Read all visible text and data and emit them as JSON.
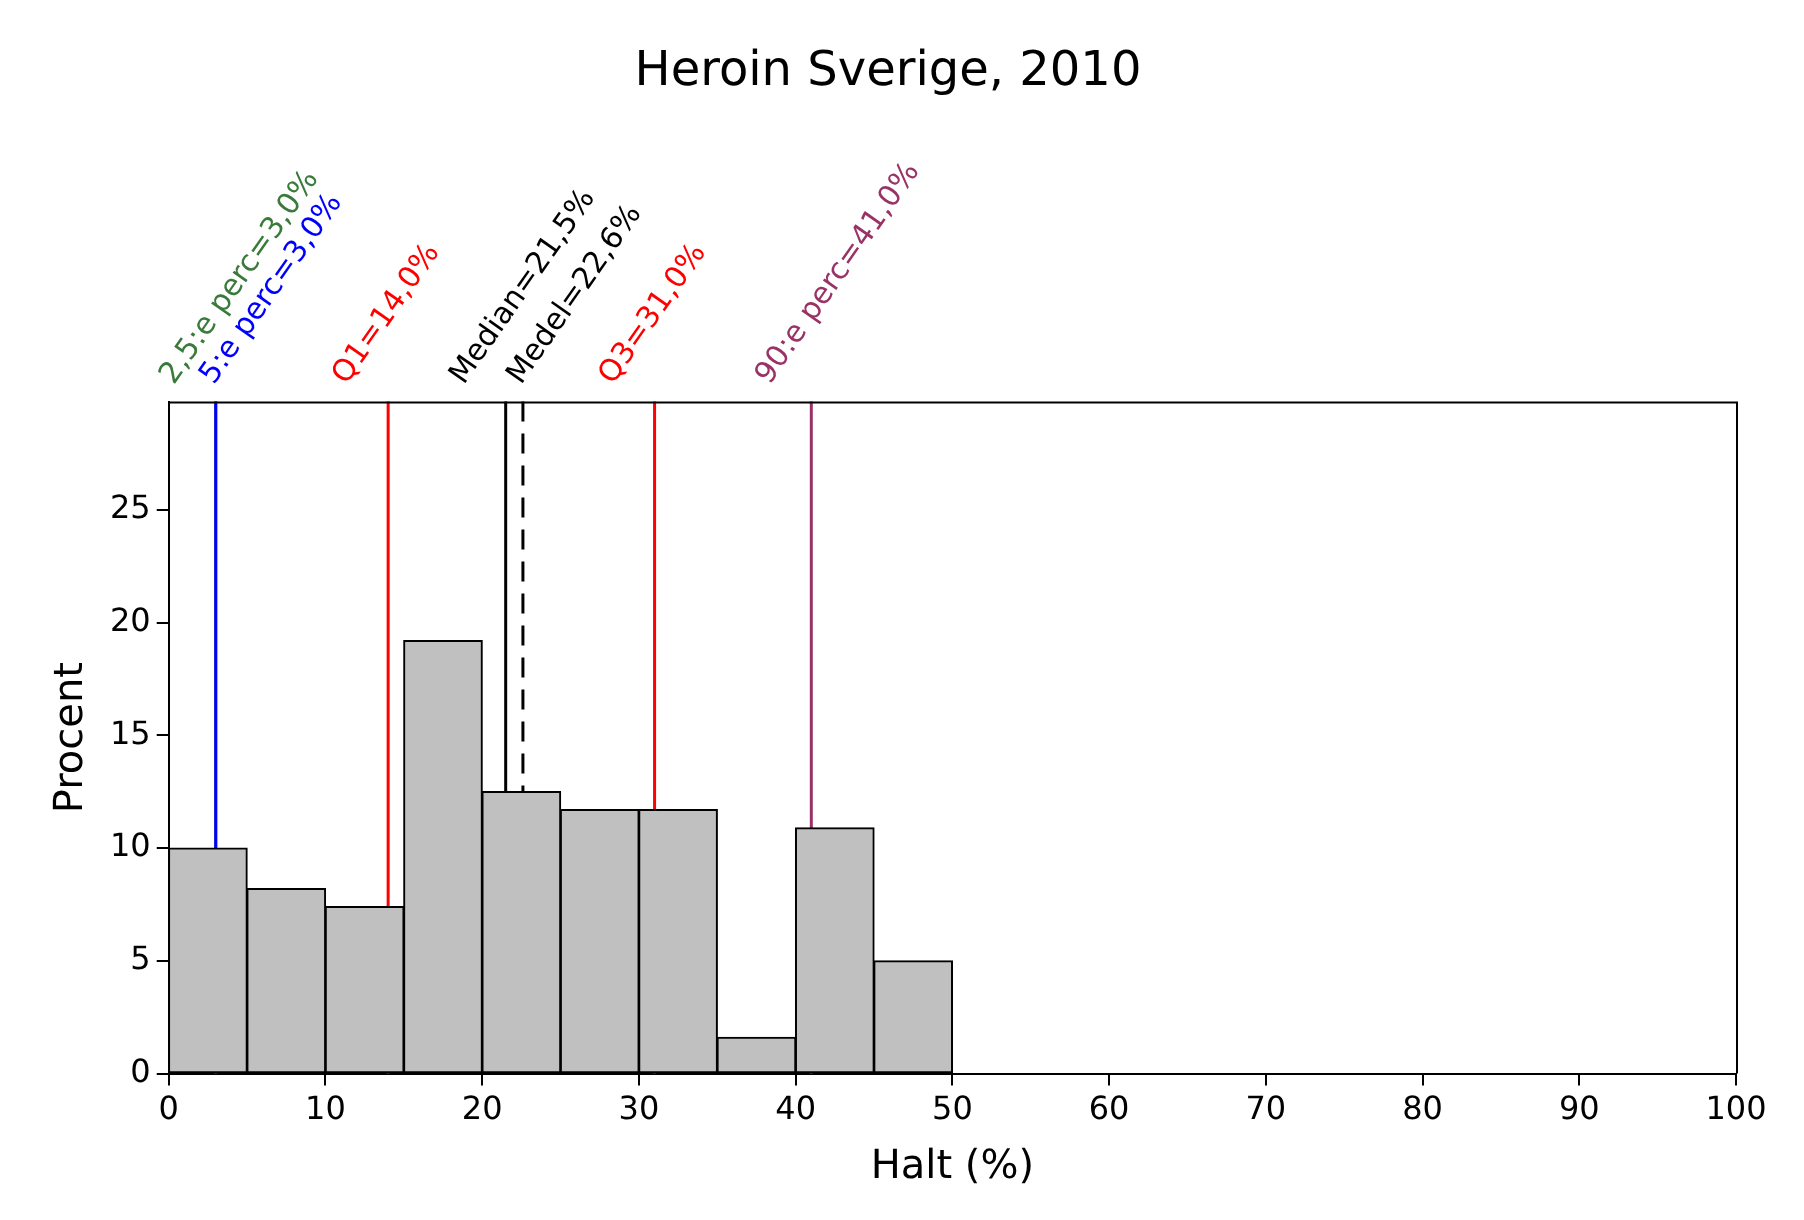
{
  "chart_data": {
    "type": "histogram",
    "title": "Heroin Sverige, 2010",
    "xlabel": "Halt (%)",
    "ylabel": "Procent",
    "bins": [
      0,
      5,
      10,
      15,
      20,
      25,
      30,
      35,
      40,
      45,
      50
    ],
    "values": [
      10.0,
      8.2,
      7.4,
      19.2,
      12.5,
      11.7,
      11.7,
      1.6,
      10.9,
      5.0
    ],
    "color": "#c0c0c0",
    "xlim": [
      0,
      100
    ],
    "xticks": [
      0,
      10,
      20,
      30,
      40,
      50,
      60,
      70,
      80,
      90,
      100
    ],
    "ylim": [
      0,
      29.8
    ],
    "yticks": [
      0,
      5,
      10,
      15,
      20,
      25
    ],
    "grid": false,
    "legend": false,
    "ref_lines": [
      {
        "axis": "x",
        "value": 3.0,
        "label": "2,5:e perc=3,0%",
        "color": "#3a7a3a",
        "line_style": "solid"
      },
      {
        "axis": "x",
        "value": 3.0,
        "label": "5:e perc=3,0%",
        "color": "#0000ff",
        "line_style": "solid"
      },
      {
        "axis": "x",
        "value": 14.0,
        "label": "Q1=14,0%",
        "color": "#ff0000",
        "line_style": "solid"
      },
      {
        "axis": "x",
        "value": 21.5,
        "label": "Median=21,5%",
        "color": "#000000",
        "line_style": "solid"
      },
      {
        "axis": "x",
        "value": 22.6,
        "label": "Medel=22,6%",
        "color": "#000000",
        "line_style": "dashed"
      },
      {
        "axis": "x",
        "value": 31.0,
        "label": "Q3=31,0%",
        "color": "#ff0000",
        "line_style": "solid"
      },
      {
        "axis": "x",
        "value": 41.0,
        "label": "90:e perc=41,0%",
        "color": "#993366",
        "line_style": "solid"
      }
    ]
  }
}
